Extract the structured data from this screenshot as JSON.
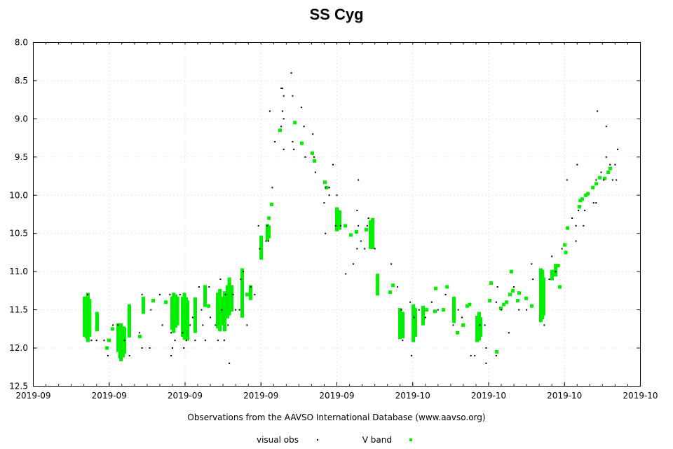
{
  "chart_data": {
    "type": "scatter",
    "title": "SS Cyg",
    "xlabel": "Observations from the AAVSO International Database (www.aavso.org)",
    "ylabel": "",
    "x_units": "days from start of axis",
    "xlim": [
      0,
      48
    ],
    "ylim": [
      12.5,
      8.0
    ],
    "y_inverted": true,
    "grid": true,
    "legend_position": "bottom",
    "x_ticks": [
      0,
      6,
      12,
      18,
      24,
      30,
      36,
      42,
      48
    ],
    "x_tick_labels": [
      "2019-09",
      "2019-09",
      "2019-09",
      "2019-09",
      "2019-09",
      "2019-10",
      "2019-10",
      "2019-10",
      "2019-10"
    ],
    "y_ticks": [
      8.0,
      8.5,
      9.0,
      9.5,
      10.0,
      10.5,
      11.0,
      11.5,
      12.0,
      12.5
    ],
    "y_tick_labels": [
      "8.0",
      "8.5",
      "9.0",
      "9.5",
      "10.0",
      "10.5",
      "11.0",
      "11.5",
      "12.0",
      "12.5"
    ],
    "series": [
      {
        "name": "visual obs",
        "color": "#000000",
        "marker": "dot",
        "points": [
          [
            4.3,
            11.3
          ],
          [
            4.6,
            11.9
          ],
          [
            5.0,
            11.9
          ],
          [
            5.6,
            11.9
          ],
          [
            5.9,
            12.1
          ],
          [
            6.3,
            11.7
          ],
          [
            6.7,
            11.7
          ],
          [
            7.2,
            11.9
          ],
          [
            7.6,
            12.1
          ],
          [
            8.6,
            11.3
          ],
          [
            8.4,
            11.8
          ],
          [
            8.6,
            12.0
          ],
          [
            9.2,
            12.0
          ],
          [
            9.3,
            11.5
          ],
          [
            10.0,
            11.3
          ],
          [
            10.2,
            11.7
          ],
          [
            10.8,
            11.3
          ],
          [
            10.9,
            11.8
          ],
          [
            10.9,
            12.1
          ],
          [
            11.0,
            12.0
          ],
          [
            11.2,
            11.9
          ],
          [
            11.6,
            11.3
          ],
          [
            11.8,
            11.8
          ],
          [
            11.9,
            12.0
          ],
          [
            12.1,
            11.9
          ],
          [
            12.4,
            11.7
          ],
          [
            12.6,
            11.6
          ],
          [
            12.8,
            11.9
          ],
          [
            13.1,
            11.2
          ],
          [
            13.3,
            11.5
          ],
          [
            13.4,
            11.7
          ],
          [
            13.6,
            11.9
          ],
          [
            13.9,
            11.2
          ],
          [
            14.0,
            11.6
          ],
          [
            14.4,
            11.7
          ],
          [
            14.6,
            11.9
          ],
          [
            14.8,
            11.1
          ],
          [
            14.9,
            11.5
          ],
          [
            15.1,
            11.9
          ],
          [
            15.2,
            11.3
          ],
          [
            15.5,
            12.2
          ],
          [
            15.4,
            11.7
          ],
          [
            15.8,
            11.3
          ],
          [
            16.0,
            11.5
          ],
          [
            16.3,
            11.5
          ],
          [
            16.4,
            11.1
          ],
          [
            16.6,
            11.0
          ],
          [
            16.9,
            11.7
          ],
          [
            17.2,
            11.2
          ],
          [
            17.5,
            11.3
          ],
          [
            17.8,
            10.4
          ],
          [
            17.9,
            10.7
          ],
          [
            18.4,
            10.6
          ],
          [
            18.5,
            10.4
          ],
          [
            18.6,
            10.6
          ],
          [
            18.7,
            8.9
          ],
          [
            18.9,
            9.9
          ],
          [
            19.1,
            9.3
          ],
          [
            19.6,
            8.6
          ],
          [
            19.7,
            8.9
          ],
          [
            19.8,
            9.0
          ],
          [
            19.7,
            8.6
          ],
          [
            19.6,
            9.1
          ],
          [
            19.8,
            9.4
          ],
          [
            19.8,
            8.7
          ],
          [
            20.4,
            8.4
          ],
          [
            20.5,
            8.7
          ],
          [
            20.5,
            9.3
          ],
          [
            20.6,
            9.4
          ],
          [
            21.2,
            8.85
          ],
          [
            21.4,
            9.1
          ],
          [
            21.5,
            9.5
          ],
          [
            22.1,
            9.2
          ],
          [
            22.2,
            9.5
          ],
          [
            22.3,
            9.7
          ],
          [
            23.0,
            10.1
          ],
          [
            23.1,
            10.5
          ],
          [
            23.1,
            9.9
          ],
          [
            23.4,
            10.0
          ],
          [
            23.4,
            9.9
          ],
          [
            23.7,
            9.6
          ],
          [
            23.9,
            10.4
          ],
          [
            24.0,
            10.0
          ],
          [
            24.3,
            10.4
          ],
          [
            24.7,
            11.03
          ],
          [
            25.3,
            10.9
          ],
          [
            25.6,
            10.2
          ],
          [
            25.7,
            9.8
          ],
          [
            25.6,
            10.7
          ],
          [
            25.7,
            10.4
          ],
          [
            25.9,
            10.6
          ],
          [
            26.2,
            10.7
          ],
          [
            26.4,
            10.4
          ],
          [
            26.5,
            10.3
          ],
          [
            27.0,
            10.7
          ],
          [
            28.3,
            10.9
          ],
          [
            28.8,
            11.2
          ],
          [
            29.1,
            11.5
          ],
          [
            29.2,
            11.9
          ],
          [
            29.8,
            11.4
          ],
          [
            29.9,
            12.1
          ],
          [
            30.1,
            11.6
          ],
          [
            30.5,
            11.5
          ],
          [
            31.0,
            11.6
          ],
          [
            31.5,
            11.4
          ],
          [
            32.0,
            11.5
          ],
          [
            32.6,
            11.3
          ],
          [
            33.2,
            11.7
          ],
          [
            33.6,
            11.5
          ],
          [
            33.9,
            11.6
          ],
          [
            34.6,
            12.1
          ],
          [
            34.9,
            12.1
          ],
          [
            35.3,
            11.7
          ],
          [
            35.7,
            11.7
          ],
          [
            35.8,
            12.0
          ],
          [
            35.8,
            12.2
          ],
          [
            36.6,
            12.1
          ],
          [
            36.6,
            11.4
          ],
          [
            36.7,
            11.2
          ],
          [
            37.0,
            11.5
          ],
          [
            37.6,
            11.8
          ],
          [
            38.0,
            11.2
          ],
          [
            38.4,
            11.5
          ],
          [
            39.0,
            11.5
          ],
          [
            39.4,
            10.9
          ],
          [
            39.5,
            11.1
          ],
          [
            40.4,
            11.7
          ],
          [
            40.8,
            11.1
          ],
          [
            41.0,
            10.8
          ],
          [
            41.3,
            11.0
          ],
          [
            41.8,
            10.7
          ],
          [
            42.2,
            9.8
          ],
          [
            42.6,
            10.3
          ],
          [
            42.9,
            10.6
          ],
          [
            42.9,
            10.4
          ],
          [
            43.0,
            9.6
          ],
          [
            43.1,
            10.2
          ],
          [
            43.5,
            10.4
          ],
          [
            43.6,
            10.2
          ],
          [
            44.3,
            10.1
          ],
          [
            44.5,
            9.8
          ],
          [
            44.5,
            10.1
          ],
          [
            44.6,
            8.9
          ],
          [
            44.9,
            9.7
          ],
          [
            45.3,
            9.5
          ],
          [
            45.3,
            9.1
          ],
          [
            45.6,
            9.6
          ],
          [
            45.8,
            9.8
          ],
          [
            46.0,
            9.6
          ],
          [
            46.2,
            9.4
          ],
          [
            45.1,
            9.8
          ],
          [
            46.1,
            9.8
          ]
        ]
      },
      {
        "name": "V band",
        "color": "#00ee00",
        "marker": "square",
        "runs": [
          [
            4.05,
            11.35,
            11.85
          ],
          [
            4.2,
            11.4,
            11.85
          ],
          [
            4.32,
            11.3,
            11.9
          ],
          [
            4.45,
            11.38,
            11.85
          ],
          [
            5.04,
            11.55,
            11.78
          ],
          [
            6.71,
            11.7,
            12.05
          ],
          [
            6.85,
            11.75,
            12.12
          ],
          [
            6.93,
            11.7,
            12.15
          ],
          [
            7.1,
            11.74,
            12.1
          ],
          [
            7.21,
            11.75,
            12.05
          ],
          [
            7.59,
            11.45,
            11.85
          ],
          [
            8.7,
            11.35,
            11.55
          ],
          [
            10.98,
            11.35,
            11.75
          ],
          [
            11.1,
            11.3,
            11.8
          ],
          [
            11.25,
            11.32,
            11.72
          ],
          [
            11.4,
            11.35,
            11.7
          ],
          [
            11.81,
            11.35,
            11.85
          ],
          [
            11.95,
            11.3,
            11.88
          ],
          [
            12.08,
            11.36,
            11.85
          ],
          [
            12.2,
            11.4,
            11.88
          ],
          [
            12.8,
            11.36,
            11.78
          ],
          [
            13.58,
            11.2,
            11.45
          ],
          [
            14.58,
            11.3,
            11.72
          ],
          [
            14.75,
            11.25,
            11.78
          ],
          [
            14.86,
            11.35,
            11.7
          ],
          [
            15.13,
            11.28,
            11.76
          ],
          [
            15.35,
            11.2,
            11.6
          ],
          [
            15.5,
            11.1,
            11.55
          ],
          [
            15.69,
            11.2,
            11.5
          ],
          [
            16.52,
            10.98,
            11.6
          ],
          [
            17.18,
            11.2,
            11.35
          ],
          [
            18.02,
            10.55,
            10.82
          ],
          [
            18.51,
            10.4,
            10.6
          ],
          [
            18.63,
            10.42,
            10.55
          ],
          [
            24.0,
            10.18,
            10.45
          ],
          [
            24.22,
            10.22,
            10.43
          ],
          [
            26.66,
            10.35,
            10.7
          ],
          [
            26.83,
            10.32,
            10.68
          ],
          [
            27.22,
            11.05,
            11.3
          ],
          [
            28.99,
            11.5,
            11.88
          ],
          [
            29.21,
            11.55,
            11.85
          ],
          [
            30.05,
            11.45,
            11.92
          ],
          [
            30.2,
            11.5,
            11.85
          ],
          [
            30.82,
            11.47,
            11.7
          ],
          [
            33.26,
            11.35,
            11.65
          ],
          [
            35.09,
            11.6,
            11.9
          ],
          [
            35.25,
            11.55,
            11.88
          ],
          [
            35.37,
            11.62,
            11.85
          ],
          [
            40.13,
            10.98,
            11.65
          ],
          [
            40.25,
            11.0,
            11.6
          ],
          [
            40.35,
            11.1,
            11.55
          ],
          [
            41.02,
            11.0,
            11.1
          ],
          [
            41.3,
            10.92,
            11.05
          ]
        ],
        "points": [
          [
            5.82,
            12.0
          ],
          [
            5.99,
            11.9
          ],
          [
            6.26,
            11.75
          ],
          [
            8.43,
            11.85
          ],
          [
            9.48,
            11.38
          ],
          [
            10.48,
            11.4
          ],
          [
            13.86,
            11.45
          ],
          [
            16.9,
            11.3
          ],
          [
            18.63,
            10.3
          ],
          [
            18.85,
            10.12
          ],
          [
            19.51,
            9.15
          ],
          [
            20.68,
            9.05
          ],
          [
            21.23,
            9.32
          ],
          [
            22.06,
            9.45
          ],
          [
            22.23,
            9.55
          ],
          [
            23.06,
            9.83
          ],
          [
            23.2,
            9.9
          ],
          [
            24.67,
            10.4
          ],
          [
            25.11,
            10.52
          ],
          [
            25.55,
            10.48
          ],
          [
            26.33,
            10.45
          ],
          [
            28.21,
            11.27
          ],
          [
            28.44,
            11.18
          ],
          [
            31.1,
            11.5
          ],
          [
            31.82,
            11.22
          ],
          [
            32.71,
            11.2
          ],
          [
            31.76,
            11.52
          ],
          [
            32.43,
            11.5
          ],
          [
            33.54,
            11.8
          ],
          [
            33.98,
            11.7
          ],
          [
            34.31,
            11.45
          ],
          [
            34.5,
            11.43
          ],
          [
            36.09,
            11.38
          ],
          [
            36.2,
            11.15
          ],
          [
            36.64,
            12.05
          ],
          [
            36.97,
            11.48
          ],
          [
            37.2,
            11.43
          ],
          [
            37.42,
            11.4
          ],
          [
            37.69,
            11.3
          ],
          [
            37.8,
            11.0
          ],
          [
            37.92,
            11.25
          ],
          [
            38.3,
            11.38
          ],
          [
            38.41,
            11.28
          ],
          [
            38.97,
            11.35
          ],
          [
            39.41,
            11.45
          ],
          [
            41.63,
            11.2
          ],
          [
            41.5,
            10.92
          ],
          [
            42.02,
            10.65
          ],
          [
            42.1,
            10.75
          ],
          [
            42.24,
            10.43
          ],
          [
            43.18,
            10.15
          ],
          [
            43.25,
            10.07
          ],
          [
            43.4,
            10.05
          ],
          [
            43.68,
            10.0
          ],
          [
            43.85,
            9.98
          ],
          [
            44.24,
            9.9
          ],
          [
            44.51,
            9.85
          ],
          [
            44.79,
            9.77
          ],
          [
            45.18,
            9.78
          ],
          [
            45.46,
            9.7
          ],
          [
            45.62,
            9.65
          ]
        ]
      }
    ]
  }
}
